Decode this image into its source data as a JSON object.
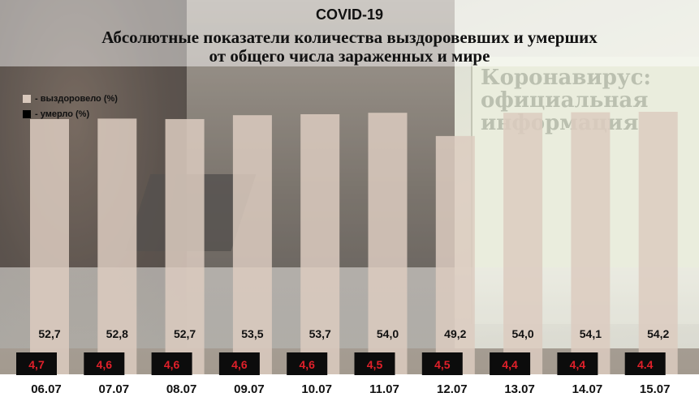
{
  "title": "COVID-19",
  "subtitle_line1": "Абсолютные показатели количества выздоровевших и умерших",
  "subtitle_line2": "от общего числа зараженных  и мире",
  "background_text": "Коронавирус: официальная информация",
  "colors": {
    "recovered_bar": "#dccbc0",
    "died_box": "#0c0c0c",
    "died_label": "#e0202a",
    "value_text": "#111111"
  },
  "legend": [
    {
      "label": "- выздоровело (%)",
      "color": "#d9c8bc"
    },
    {
      "label": "- умерло (%)",
      "color": "#000000"
    }
  ],
  "chart_data": {
    "type": "bar",
    "categories": [
      "06.07",
      "07.07",
      "08.07",
      "09.07",
      "10.07",
      "11.07",
      "12.07",
      "13.07",
      "14.07",
      "15.07"
    ],
    "series": [
      {
        "name": "выздоровело (%)",
        "values": [
          52.7,
          52.8,
          52.7,
          53.5,
          53.7,
          54.0,
          49.2,
          54.0,
          54.1,
          54.2
        ],
        "labels": [
          "52,7",
          "52,8",
          "52,7",
          "53,5",
          "53,7",
          "54,0",
          "49,2",
          "54,0",
          "54,1",
          "54,2"
        ]
      },
      {
        "name": "умерло (%)",
        "values": [
          4.7,
          4.6,
          4.6,
          4.6,
          4.6,
          4.5,
          4.5,
          4.4,
          4.4,
          4.4
        ],
        "labels": [
          "4,7",
          "4,6",
          "4,6",
          "4,6",
          "4,6",
          "4,5",
          "4,5",
          "4,4",
          "4,4",
          "4.4"
        ]
      }
    ],
    "legend_position": "top-left",
    "grid": false
  }
}
